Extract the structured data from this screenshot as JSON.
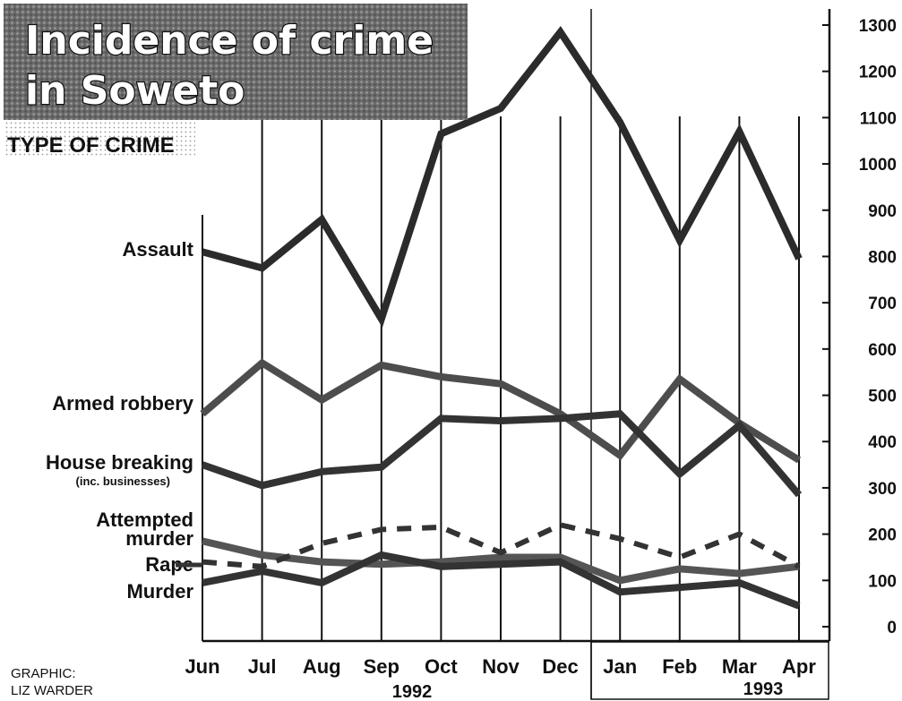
{
  "chart_data": {
    "type": "line",
    "title_lines": [
      "Incidence of crime",
      "in Soweto"
    ],
    "legend_title": "TYPE OF CRIME",
    "categories": [
      "Jun",
      "Jul",
      "Aug",
      "Sep",
      "Oct",
      "Nov",
      "Dec",
      "Jan",
      "Feb",
      "Mar",
      "Apr"
    ],
    "year_labels": [
      "1992",
      "1993"
    ],
    "ylim": [
      0,
      1300
    ],
    "yticks": [
      "1300",
      "1200",
      "1100",
      "1000",
      "900",
      "800",
      "700",
      "600",
      "500",
      "400",
      "300",
      "200",
      "100",
      "0"
    ],
    "grid": "vertical",
    "series": [
      {
        "name": "Assault",
        "color": "#2b2b2b",
        "values": [
          810,
          775,
          880,
          665,
          1065,
          1120,
          1285,
          1090,
          835,
          1070,
          795
        ]
      },
      {
        "name": "Armed robbery",
        "color": "#4d4d4d",
        "values": [
          460,
          570,
          490,
          565,
          540,
          525,
          460,
          370,
          535,
          440,
          360
        ]
      },
      {
        "name": "House breaking",
        "sub": "(inc. businesses)",
        "color": "#333333",
        "values": [
          350,
          305,
          335,
          345,
          450,
          445,
          450,
          460,
          330,
          435,
          285
        ]
      },
      {
        "name": "Attempted murder",
        "name_lines": [
          "Attempted",
          "murder"
        ],
        "color": "#555555",
        "values": [
          185,
          155,
          140,
          135,
          140,
          150,
          150,
          100,
          125,
          115,
          130
        ]
      },
      {
        "name": "Rape",
        "color": "#333333",
        "style": "dashed",
        "values": [
          140,
          130,
          180,
          210,
          215,
          160,
          220,
          190,
          150,
          200,
          130
        ]
      },
      {
        "name": "Murder",
        "color": "#333333",
        "values": [
          95,
          120,
          95,
          155,
          130,
          135,
          140,
          75,
          85,
          95,
          45
        ]
      }
    ]
  },
  "credit": {
    "line1": "GRAPHIC:",
    "line2": "LIZ WARDER"
  }
}
